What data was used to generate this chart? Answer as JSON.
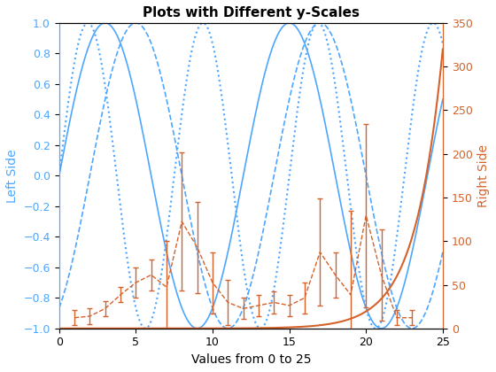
{
  "title": "Plots with Different y-Scales",
  "xlabel": "Values from 0 to 25",
  "ylabel_left": "Left Side",
  "ylabel_right": "Right Side",
  "xlim": [
    0,
    25
  ],
  "ylim_left": [
    -1,
    1
  ],
  "ylim_right": [
    0,
    350
  ],
  "yticks_left": [
    -1,
    -0.8,
    -0.6,
    -0.4,
    -0.2,
    0,
    0.2,
    0.4,
    0.6,
    0.8,
    1.0
  ],
  "yticks_right": [
    0,
    50,
    100,
    150,
    200,
    250,
    300,
    350
  ],
  "blue_color": "#4DA6FF",
  "orange_color": "#D4622A",
  "sin1_period": 12,
  "sin2_period": 12,
  "sin2_phase": 2.0,
  "sin3_period": 7.5,
  "orange_exp_scale": 0.56,
  "errorbar_x": [
    1,
    2,
    3,
    4,
    5,
    6,
    7,
    8,
    9,
    10,
    11,
    12,
    13,
    14,
    15,
    16,
    17,
    18,
    19,
    20,
    21,
    22,
    23
  ],
  "errorbar_y": [
    -0.93,
    -0.92,
    -0.87,
    -0.78,
    -0.7,
    -0.65,
    -0.73,
    -0.3,
    -0.47,
    -0.7,
    -0.83,
    -0.87,
    -0.85,
    -0.83,
    -0.85,
    -0.8,
    -0.5,
    -0.65,
    -0.78,
    -0.26,
    -0.65,
    -0.93,
    -0.93
  ],
  "errorbar_yerr": [
    0.05,
    0.05,
    0.05,
    0.05,
    0.1,
    0.1,
    0.3,
    0.45,
    0.3,
    0.2,
    0.15,
    0.07,
    0.07,
    0.07,
    0.07,
    0.1,
    0.35,
    0.15,
    0.55,
    0.6,
    0.3,
    0.05,
    0.05
  ]
}
